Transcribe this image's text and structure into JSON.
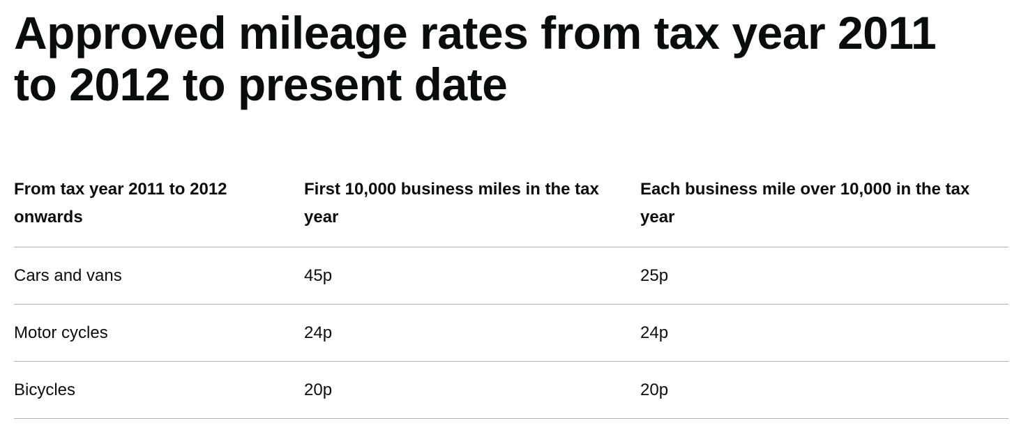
{
  "header": {
    "title": "Approved mileage rates from tax year 2011 to 2012 to present date"
  },
  "table": {
    "columns": [
      "From tax year 2011 to 2012 onwards",
      "First 10,000 business miles in the tax year",
      "Each business mile over 10,000 in the tax year"
    ],
    "rows": [
      [
        "Cars and vans",
        "45p",
        "25p"
      ],
      [
        "Motor cycles",
        "24p",
        "24p"
      ],
      [
        "Bicycles",
        "20p",
        "20p"
      ]
    ]
  }
}
